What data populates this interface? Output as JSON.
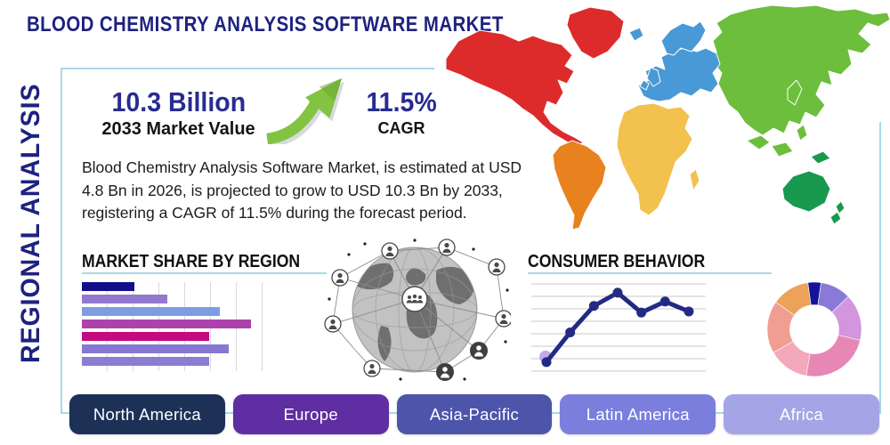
{
  "title": "BLOOD CHEMISTRY ANALYSIS SOFTWARE MARKET",
  "side_label": "REGIONAL ANALYSIS",
  "stats": {
    "market_value": "10.3 Billion",
    "market_value_label": "2033 Market Value",
    "cagr_value": "11.5%",
    "cagr_label": "CAGR"
  },
  "description": "Blood Chemistry Analysis Software Market, is estimated at USD 4.8 Bn in 2026, is projected to grow to USD 10.3 Bn by 2033, registering a CAGR of 11.5% during the forecast period.",
  "colors": {
    "accent_navy": "#1d2280",
    "stat_navy": "#282c90",
    "frame_blue": "#a9d9e9",
    "arrow_green": "#82c341",
    "arrow_green_dark": "#6aa832"
  },
  "icons": {
    "growth_arrow": "up-right-curved-arrow",
    "globe": "connected-people-network-globe"
  },
  "buttons": [
    {
      "label": "North America",
      "color": "#1d3156"
    },
    {
      "label": "Europe",
      "color": "#5f2ea2"
    },
    {
      "label": "Asia-Pacific",
      "color": "#4d55aa"
    },
    {
      "label": "Latin America",
      "color": "#7b7edd"
    },
    {
      "label": "Africa",
      "color": "#a4a5e6"
    }
  ],
  "chart_data": [
    {
      "type": "bar",
      "orientation": "horizontal",
      "title": "MARKET SHARE BY REGION",
      "categories": null,
      "values": [
        29,
        47,
        76,
        93,
        70,
        81,
        70
      ],
      "xlim": [
        0,
        100
      ],
      "grid": true,
      "grid_color": "#d9d9df",
      "colors": [
        "#150e8c",
        "#9279cf",
        "#7e9de3",
        "#ac42ab",
        "#c40a7e",
        "#8678d2",
        "#8b7cd4"
      ]
    },
    {
      "type": "line",
      "title": "CONSUMER BEHAVIOR",
      "x": [
        1,
        2,
        3,
        4,
        5,
        6,
        7
      ],
      "values": [
        0.9,
        3.6,
        6.0,
        7.2,
        5.4,
        6.4,
        5.5
      ],
      "ylim": [
        0,
        8
      ],
      "grid": "horizontal",
      "grid_color": "#c8c8c8",
      "line_color": "#232a85",
      "marker_color": "#232a85",
      "highlight_point_index": 0,
      "highlight_color": "#b9a2e2"
    },
    {
      "type": "pie",
      "donut": true,
      "title": "",
      "values": [
        4.5,
        10.5,
        16,
        24,
        14,
        18,
        13
      ],
      "start_offset_deg": -8,
      "colors": [
        "#15129b",
        "#8a79d8",
        "#d295de",
        "#e687b6",
        "#f4a9bb",
        "#f19d92",
        "#eca259"
      ]
    }
  ],
  "map": {
    "continents": {
      "north_america": "#dd2b2b",
      "south_america": "#e8821f",
      "europe": "#4999d6",
      "africa": "#f2c14e",
      "asia": "#6cbe3c",
      "oceania": "#18994f"
    }
  }
}
